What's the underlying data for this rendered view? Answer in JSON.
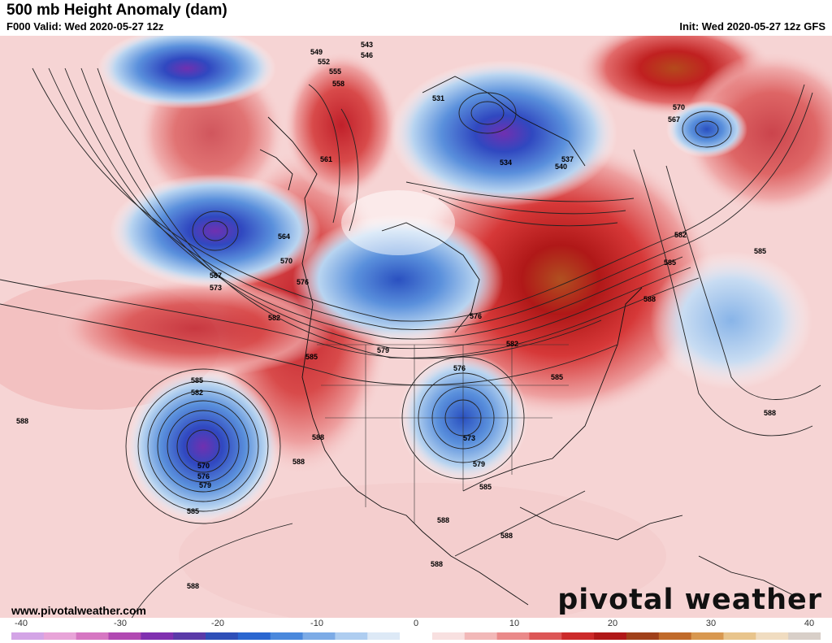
{
  "header": {
    "title": "500 mb Height Anomaly (dam)",
    "valid": "F000 Valid: Wed 2020-05-27 12z",
    "init": "Init: Wed 2020-05-27 12z GFS"
  },
  "footer": {
    "website": "www.pivotalweather.com",
    "logo": "pivotal weather"
  },
  "colorbar": {
    "ticks": [
      "-40",
      "-30",
      "-20",
      "-10",
      "0",
      "10",
      "20",
      "30",
      "40"
    ],
    "colors": [
      "#d3a4e6",
      "#e8a4d8",
      "#d676c2",
      "#b149b2",
      "#8030b0",
      "#5a3aa8",
      "#2e4fb8",
      "#2a66d0",
      "#4a88dc",
      "#7cabe6",
      "#aecdf0",
      "#dde9f6",
      "#ffffff",
      "#f8e0e0",
      "#f2b8b8",
      "#ea8a8a",
      "#dc5656",
      "#cc2a2a",
      "#b01818",
      "#a0401a",
      "#c06a2a",
      "#d89850",
      "#e8c48c",
      "#f0dcc0",
      "#d8cfc8"
    ]
  },
  "contour_labels": [
    "543",
    "546",
    "549",
    "552",
    "555",
    "558",
    "531",
    "537",
    "540",
    "534",
    "561",
    "564",
    "567",
    "570",
    "573",
    "576",
    "579",
    "582",
    "585",
    "588"
  ]
}
